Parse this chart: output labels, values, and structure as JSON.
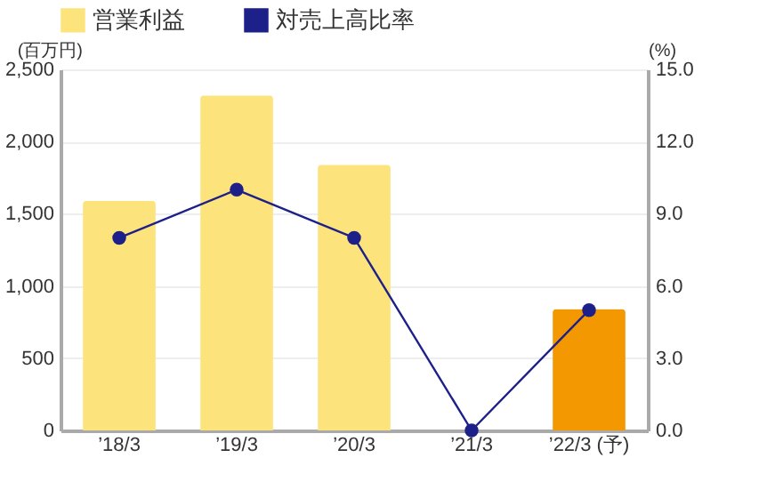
{
  "chart_data": {
    "type": "bar",
    "categories": [
      "’18/3",
      "’19/3",
      "’20/3",
      "’21/3",
      "’22/3 (予)"
    ],
    "series": [
      {
        "name": "営業利益",
        "color": "#fde37b",
        "colors": [
          "#fde37b",
          "#fde37b",
          "#fde37b",
          "#fde37b",
          "#f39800"
        ],
        "values": [
          1590,
          2320,
          1840,
          0,
          840
        ]
      },
      {
        "name": "対売上高比率",
        "type": "line",
        "axis": "y2",
        "color": "#1d2088",
        "values": [
          8.0,
          10.0,
          8.0,
          0.0,
          5.0
        ]
      }
    ],
    "ylabel": "(百万円)",
    "y2label": "(%)",
    "ylim": [
      0,
      2500
    ],
    "yticks": [
      {
        "value": 0,
        "label": "0"
      },
      {
        "value": 500,
        "label": "500"
      },
      {
        "value": 1000,
        "label": "1,000"
      },
      {
        "value": 1500,
        "label": "1,500"
      },
      {
        "value": 2000,
        "label": "2,000"
      },
      {
        "value": 2500,
        "label": "2,500"
      }
    ],
    "y2lim": [
      0,
      15
    ],
    "y2ticks": [
      {
        "value": 0,
        "label": "0.0"
      },
      {
        "value": 3,
        "label": "3.0"
      },
      {
        "value": 6,
        "label": "6.0"
      },
      {
        "value": 9,
        "label": "9.0"
      },
      {
        "value": 12,
        "label": "12.0"
      },
      {
        "value": 15,
        "label": "15.0"
      }
    ],
    "grid": "y",
    "legend": "top",
    "marker": "circle"
  }
}
